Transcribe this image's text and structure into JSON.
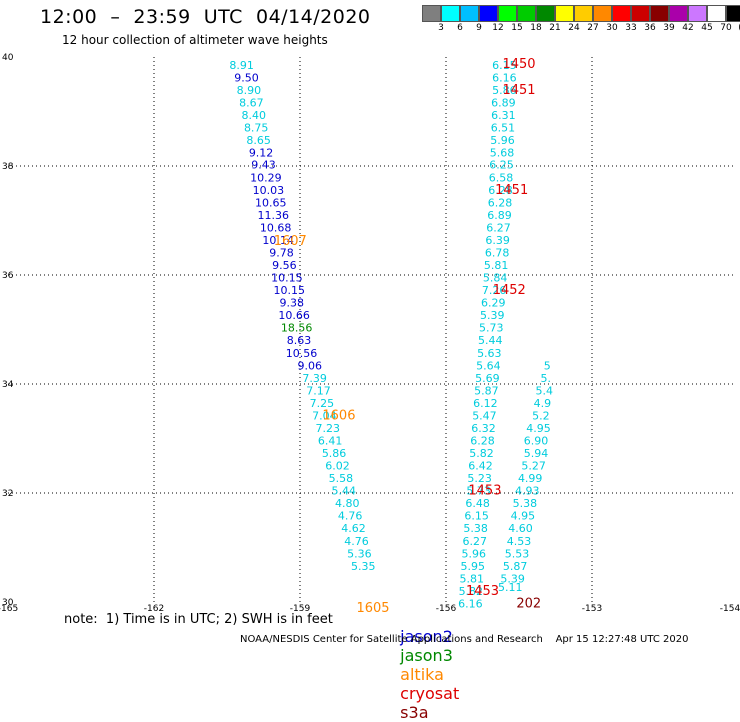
{
  "header": {
    "title": "12:00  –  23:59  UTC  04/14/2020",
    "subtitle": "12 hour collection of altimeter wave heights"
  },
  "color_scale": {
    "labels": [
      "3",
      "6",
      "9",
      "12",
      "15",
      "18",
      "21",
      "24",
      "27",
      "30",
      "33",
      "36",
      "39",
      "42",
      "45",
      "70",
      "(ft)"
    ],
    "colors": [
      "#7f7f7f",
      "#00ffff",
      "#00bfff",
      "#0000ff",
      "#00ff00",
      "#00cc00",
      "#008800",
      "#ffff00",
      "#ffcc00",
      "#ff8800",
      "#ff0000",
      "#cc0000",
      "#880000",
      "#aa00aa",
      "#cc77ff",
      "#ffffff",
      "#000000"
    ]
  },
  "chart_data": {
    "type": "scatter",
    "xlim": [
      -165,
      -154
    ],
    "ylim": [
      30,
      40
    ],
    "xticks": [
      "-165",
      "-162",
      "-159",
      "-156",
      "-153",
      "-154"
    ],
    "yticks": [
      "40",
      "38",
      "36",
      "34",
      "32",
      "30"
    ],
    "grid": true,
    "points": [
      {
        "v": "8.91",
        "lon": -160.2,
        "lat": 39.78,
        "c": "#00ccdd"
      },
      {
        "v": "9.50",
        "lon": -160.1,
        "lat": 39.55,
        "c": "#0000cc"
      },
      {
        "v": "8.90",
        "lon": -160.05,
        "lat": 39.32,
        "c": "#00ccdd"
      },
      {
        "v": "8.67",
        "lon": -160.0,
        "lat": 39.09,
        "c": "#00ccdd"
      },
      {
        "v": "8.40",
        "lon": -159.95,
        "lat": 38.86,
        "c": "#00ccdd"
      },
      {
        "v": "8.75",
        "lon": -159.9,
        "lat": 38.63,
        "c": "#00ccdd"
      },
      {
        "v": "8.65",
        "lon": -159.85,
        "lat": 38.4,
        "c": "#00ccdd"
      },
      {
        "v": "9.12",
        "lon": -159.8,
        "lat": 38.17,
        "c": "#0000cc"
      },
      {
        "v": "9.43",
        "lon": -159.75,
        "lat": 37.95,
        "c": "#0000cc"
      },
      {
        "v": "10.29",
        "lon": -159.7,
        "lat": 37.72,
        "c": "#0000cc"
      },
      {
        "v": "10.03",
        "lon": -159.65,
        "lat": 37.49,
        "c": "#0000cc"
      },
      {
        "v": "10.65",
        "lon": -159.6,
        "lat": 37.26,
        "c": "#0000cc"
      },
      {
        "v": "11.36",
        "lon": -159.55,
        "lat": 37.03,
        "c": "#0000cc"
      },
      {
        "v": "10.68",
        "lon": -159.5,
        "lat": 36.8,
        "c": "#0000cc"
      },
      {
        "v": "10.14",
        "lon": -159.45,
        "lat": 36.57,
        "c": "#0000cc"
      },
      {
        "v": "9.78",
        "lon": -159.38,
        "lat": 36.34,
        "c": "#0000cc"
      },
      {
        "v": "9.56",
        "lon": -159.32,
        "lat": 36.11,
        "c": "#0000cc"
      },
      {
        "v": "10.15",
        "lon": -159.27,
        "lat": 35.88,
        "c": "#0000cc"
      },
      {
        "v": "10.15",
        "lon": -159.22,
        "lat": 35.65,
        "c": "#0000cc"
      },
      {
        "v": "9.38",
        "lon": -159.17,
        "lat": 35.42,
        "c": "#0000cc"
      },
      {
        "v": "10.66",
        "lon": -159.12,
        "lat": 35.19,
        "c": "#0000cc"
      },
      {
        "v": "18.56",
        "lon": -159.07,
        "lat": 34.96,
        "c": "#008800"
      },
      {
        "v": "8.63",
        "lon": -159.02,
        "lat": 34.73,
        "c": "#0000cc"
      },
      {
        "v": "10.56",
        "lon": -158.97,
        "lat": 34.5,
        "c": "#0000cc"
      },
      {
        "v": "9.06",
        "lon": -158.8,
        "lat": 34.27,
        "c": "#0000cc"
      },
      {
        "v": "7.39",
        "lon": -158.7,
        "lat": 34.04,
        "c": "#00ccdd"
      },
      {
        "v": "7.17",
        "lon": -158.62,
        "lat": 33.81,
        "c": "#00ccdd"
      },
      {
        "v": "7.25",
        "lon": -158.55,
        "lat": 33.58,
        "c": "#00ccdd"
      },
      {
        "v": "7.04",
        "lon": -158.5,
        "lat": 33.35,
        "c": "#00ccdd"
      },
      {
        "v": "7.23",
        "lon": -158.43,
        "lat": 33.12,
        "c": "#00ccdd"
      },
      {
        "v": "6.41",
        "lon": -158.38,
        "lat": 32.89,
        "c": "#00ccdd"
      },
      {
        "v": "5.86",
        "lon": -158.3,
        "lat": 32.66,
        "c": "#00ccdd"
      },
      {
        "v": "6.02",
        "lon": -158.23,
        "lat": 32.43,
        "c": "#00ccdd"
      },
      {
        "v": "5.58",
        "lon": -158.16,
        "lat": 32.2,
        "c": "#00ccdd"
      },
      {
        "v": "5.44",
        "lon": -158.1,
        "lat": 31.97,
        "c": "#00ccdd"
      },
      {
        "v": "4.80",
        "lon": -158.03,
        "lat": 31.74,
        "c": "#00ccdd"
      },
      {
        "v": "4.76",
        "lon": -157.97,
        "lat": 31.51,
        "c": "#00ccdd"
      },
      {
        "v": "4.62",
        "lon": -157.9,
        "lat": 31.28,
        "c": "#00ccdd"
      },
      {
        "v": "4.76",
        "lon": -157.84,
        "lat": 31.05,
        "c": "#00ccdd"
      },
      {
        "v": "5.36",
        "lon": -157.78,
        "lat": 30.82,
        "c": "#00ccdd"
      },
      {
        "v": "5.35",
        "lon": -157.7,
        "lat": 30.59,
        "c": "#00ccdd"
      },
      {
        "v": "6.15",
        "lon": -154.8,
        "lat": 39.78,
        "c": "#00ccdd"
      },
      {
        "v": "6.16",
        "lon": -154.8,
        "lat": 39.55,
        "c": "#00ccdd"
      },
      {
        "v": "5.86",
        "lon": -154.8,
        "lat": 39.32,
        "c": "#00ccdd"
      },
      {
        "v": "6.89",
        "lon": -154.82,
        "lat": 39.09,
        "c": "#00ccdd"
      },
      {
        "v": "6.31",
        "lon": -154.82,
        "lat": 38.86,
        "c": "#00ccdd"
      },
      {
        "v": "6.51",
        "lon": -154.83,
        "lat": 38.63,
        "c": "#00ccdd"
      },
      {
        "v": "5.96",
        "lon": -154.84,
        "lat": 38.4,
        "c": "#00ccdd"
      },
      {
        "v": "5.68",
        "lon": -154.85,
        "lat": 38.17,
        "c": "#00ccdd"
      },
      {
        "v": "6.25",
        "lon": -154.86,
        "lat": 37.95,
        "c": "#00ccdd"
      },
      {
        "v": "6.58",
        "lon": -154.87,
        "lat": 37.72,
        "c": "#00ccdd"
      },
      {
        "v": "6.28",
        "lon": -154.88,
        "lat": 37.49,
        "c": "#00ccdd"
      },
      {
        "v": "6.28",
        "lon": -154.89,
        "lat": 37.26,
        "c": "#00ccdd"
      },
      {
        "v": "6.89",
        "lon": -154.9,
        "lat": 37.03,
        "c": "#00ccdd"
      },
      {
        "v": "6.27",
        "lon": -154.92,
        "lat": 36.8,
        "c": "#00ccdd"
      },
      {
        "v": "6.39",
        "lon": -154.94,
        "lat": 36.57,
        "c": "#00ccdd"
      },
      {
        "v": "6.78",
        "lon": -154.95,
        "lat": 36.34,
        "c": "#00ccdd"
      },
      {
        "v": "5.81",
        "lon": -154.97,
        "lat": 36.11,
        "c": "#00ccdd"
      },
      {
        "v": "5.84",
        "lon": -154.99,
        "lat": 35.88,
        "c": "#00ccdd"
      },
      {
        "v": "7.26",
        "lon": -155.01,
        "lat": 35.65,
        "c": "#00ccdd"
      },
      {
        "v": "6.29",
        "lon": -155.03,
        "lat": 35.42,
        "c": "#00ccdd"
      },
      {
        "v": "5.39",
        "lon": -155.05,
        "lat": 35.19,
        "c": "#00ccdd"
      },
      {
        "v": "5.73",
        "lon": -155.07,
        "lat": 34.96,
        "c": "#00ccdd"
      },
      {
        "v": "5.44",
        "lon": -155.09,
        "lat": 34.73,
        "c": "#00ccdd"
      },
      {
        "v": "5.63",
        "lon": -155.11,
        "lat": 34.5,
        "c": "#00ccdd"
      },
      {
        "v": "5.64",
        "lon": -155.13,
        "lat": 34.27,
        "c": "#00ccdd"
      },
      {
        "v": "5.69",
        "lon": -155.15,
        "lat": 34.04,
        "c": "#00ccdd"
      },
      {
        "v": "5.87",
        "lon": -155.17,
        "lat": 33.81,
        "c": "#00ccdd"
      },
      {
        "v": "6.12",
        "lon": -155.19,
        "lat": 33.58,
        "c": "#00ccdd"
      },
      {
        "v": "5.47",
        "lon": -155.21,
        "lat": 33.35,
        "c": "#00ccdd"
      },
      {
        "v": "6.32",
        "lon": -155.23,
        "lat": 33.12,
        "c": "#00ccdd"
      },
      {
        "v": "6.28",
        "lon": -155.25,
        "lat": 32.89,
        "c": "#00ccdd"
      },
      {
        "v": "5.82",
        "lon": -155.27,
        "lat": 32.66,
        "c": "#00ccdd"
      },
      {
        "v": "6.42",
        "lon": -155.29,
        "lat": 32.43,
        "c": "#00ccdd"
      },
      {
        "v": "5.23",
        "lon": -155.31,
        "lat": 32.2,
        "c": "#00ccdd"
      },
      {
        "v": "5.73",
        "lon": -155.33,
        "lat": 31.97,
        "c": "#00ccdd"
      },
      {
        "v": "6.48",
        "lon": -155.35,
        "lat": 31.74,
        "c": "#00ccdd"
      },
      {
        "v": "6.15",
        "lon": -155.37,
        "lat": 31.51,
        "c": "#00ccdd"
      },
      {
        "v": "5.38",
        "lon": -155.39,
        "lat": 31.28,
        "c": "#00ccdd"
      },
      {
        "v": "6.27",
        "lon": -155.41,
        "lat": 31.05,
        "c": "#00ccdd"
      },
      {
        "v": "5.96",
        "lon": -155.43,
        "lat": 30.82,
        "c": "#00ccdd"
      },
      {
        "v": "5.95",
        "lon": -155.45,
        "lat": 30.59,
        "c": "#00ccdd"
      },
      {
        "v": "5.81",
        "lon": -155.47,
        "lat": 30.36,
        "c": "#00ccdd"
      },
      {
        "v": "5.82",
        "lon": -155.49,
        "lat": 30.13,
        "c": "#00ccdd"
      },
      {
        "v": "6.16",
        "lon": -155.5,
        "lat": 29.9,
        "c": "#00ccdd"
      },
      {
        "v": "5.94",
        "lon": -154.15,
        "lat": 32.66,
        "c": "#00ccdd"
      },
      {
        "v": "5.27",
        "lon": -154.2,
        "lat": 32.43,
        "c": "#00ccdd"
      },
      {
        "v": "4.99",
        "lon": -154.27,
        "lat": 32.2,
        "c": "#00ccdd"
      },
      {
        "v": "4.93",
        "lon": -154.33,
        "lat": 31.97,
        "c": "#00ccdd"
      },
      {
        "v": "5.38",
        "lon": -154.38,
        "lat": 31.74,
        "c": "#00ccdd"
      },
      {
        "v": "4.95",
        "lon": -154.42,
        "lat": 31.51,
        "c": "#00ccdd"
      },
      {
        "v": "4.60",
        "lon": -154.47,
        "lat": 31.28,
        "c": "#00ccdd"
      },
      {
        "v": "4.53",
        "lon": -154.5,
        "lat": 31.05,
        "c": "#00ccdd"
      },
      {
        "v": "5.53",
        "lon": -154.54,
        "lat": 30.82,
        "c": "#00ccdd"
      },
      {
        "v": "5.87",
        "lon": -154.58,
        "lat": 30.59,
        "c": "#00ccdd"
      },
      {
        "v": "5.39",
        "lon": -154.63,
        "lat": 30.36,
        "c": "#00ccdd"
      },
      {
        "v": "5.11",
        "lon": -154.68,
        "lat": 30.2,
        "c": "#00ccdd"
      },
      {
        "v": "6.90",
        "lon": -154.15,
        "lat": 32.89,
        "c": "#00ccdd"
      },
      {
        "v": "4.95",
        "lon": -154.1,
        "lat": 33.12,
        "c": "#00ccdd"
      },
      {
        "v": "5.2",
        "lon": -154.05,
        "lat": 33.35,
        "c": "#00ccdd"
      },
      {
        "v": "4.9",
        "lon": -154.02,
        "lat": 33.58,
        "c": "#00ccdd"
      },
      {
        "v": "5.4",
        "lon": -153.98,
        "lat": 33.81,
        "c": "#00ccdd"
      },
      {
        "v": "5.",
        "lon": -153.95,
        "lat": 34.04,
        "c": "#00ccdd"
      },
      {
        "v": "5",
        "lon": -153.92,
        "lat": 34.27,
        "c": "#00ccdd"
      }
    ],
    "time_labels": [
      {
        "t": "1450",
        "lon": -154.5,
        "lat": 39.8,
        "c": "#dd0000"
      },
      {
        "t": "1451",
        "lon": -154.5,
        "lat": 39.32,
        "c": "#dd0000"
      },
      {
        "t": "1451",
        "lon": -154.65,
        "lat": 37.49,
        "c": "#dd0000"
      },
      {
        "t": "1452",
        "lon": -154.7,
        "lat": 35.65,
        "c": "#dd0000"
      },
      {
        "t": "1453",
        "lon": -155.2,
        "lat": 31.97,
        "c": "#dd0000"
      },
      {
        "t": "1453",
        "lon": -155.25,
        "lat": 30.13,
        "c": "#dd0000"
      },
      {
        "t": "1607",
        "lon": -159.2,
        "lat": 36.55,
        "c": "#ff8800"
      },
      {
        "t": "1606",
        "lon": -158.2,
        "lat": 33.35,
        "c": "#ff8800"
      },
      {
        "t": "1605",
        "lon": -157.5,
        "lat": 29.82,
        "c": "#ff8800"
      },
      {
        "t": "202",
        "lon": -154.3,
        "lat": 29.9,
        "c": "#880000"
      }
    ]
  },
  "note": "note:  1) Time is in UTC; 2) SWH is in feet",
  "legend": [
    {
      "label": "jason2",
      "color": "#0000cc"
    },
    {
      "label": "jason3",
      "color": "#008800"
    },
    {
      "label": "altika",
      "color": "#ff8800"
    },
    {
      "label": "cryosat",
      "color": "#dd0000"
    },
    {
      "label": "s3a",
      "color": "#880000"
    }
  ],
  "footer": {
    "source": "NOAA/NESDIS Center for Satellite Applications and Research",
    "timestamp": "Apr 15 12:27:48 UTC 2020"
  }
}
